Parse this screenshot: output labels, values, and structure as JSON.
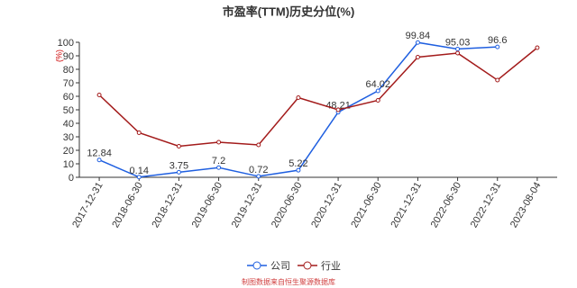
{
  "chart_data": {
    "type": "line",
    "title": "市盈率(TTM)历史分位(%)",
    "y_label": "(%)",
    "categories": [
      "2017-12-31",
      "2018-06-30",
      "2018-12-31",
      "2019-06-30",
      "2019-12-31",
      "2020-06-30",
      "2020-12-31",
      "2021-06-30",
      "2021-12-31",
      "2022-06-30",
      "2022-12-31",
      "2023-08-04"
    ],
    "series": [
      {
        "name": "公司",
        "color": "#1f5fe0",
        "show_labels": true,
        "values": [
          12.84,
          0.14,
          3.75,
          7.2,
          0.72,
          5.22,
          48.21,
          64.02,
          99.84,
          95.03,
          96.6,
          null
        ]
      },
      {
        "name": "行业",
        "color": "#a31b1b",
        "show_labels": false,
        "values": [
          61,
          33,
          23,
          26,
          24,
          59,
          50,
          57,
          89,
          92,
          72,
          96
        ]
      }
    ],
    "ylim": [
      0,
      100
    ],
    "yticks": [
      0,
      10,
      20,
      30,
      40,
      50,
      60,
      70,
      80,
      90,
      100
    ],
    "grid": false,
    "source": "制图数据来自恒生聚源数据库"
  }
}
